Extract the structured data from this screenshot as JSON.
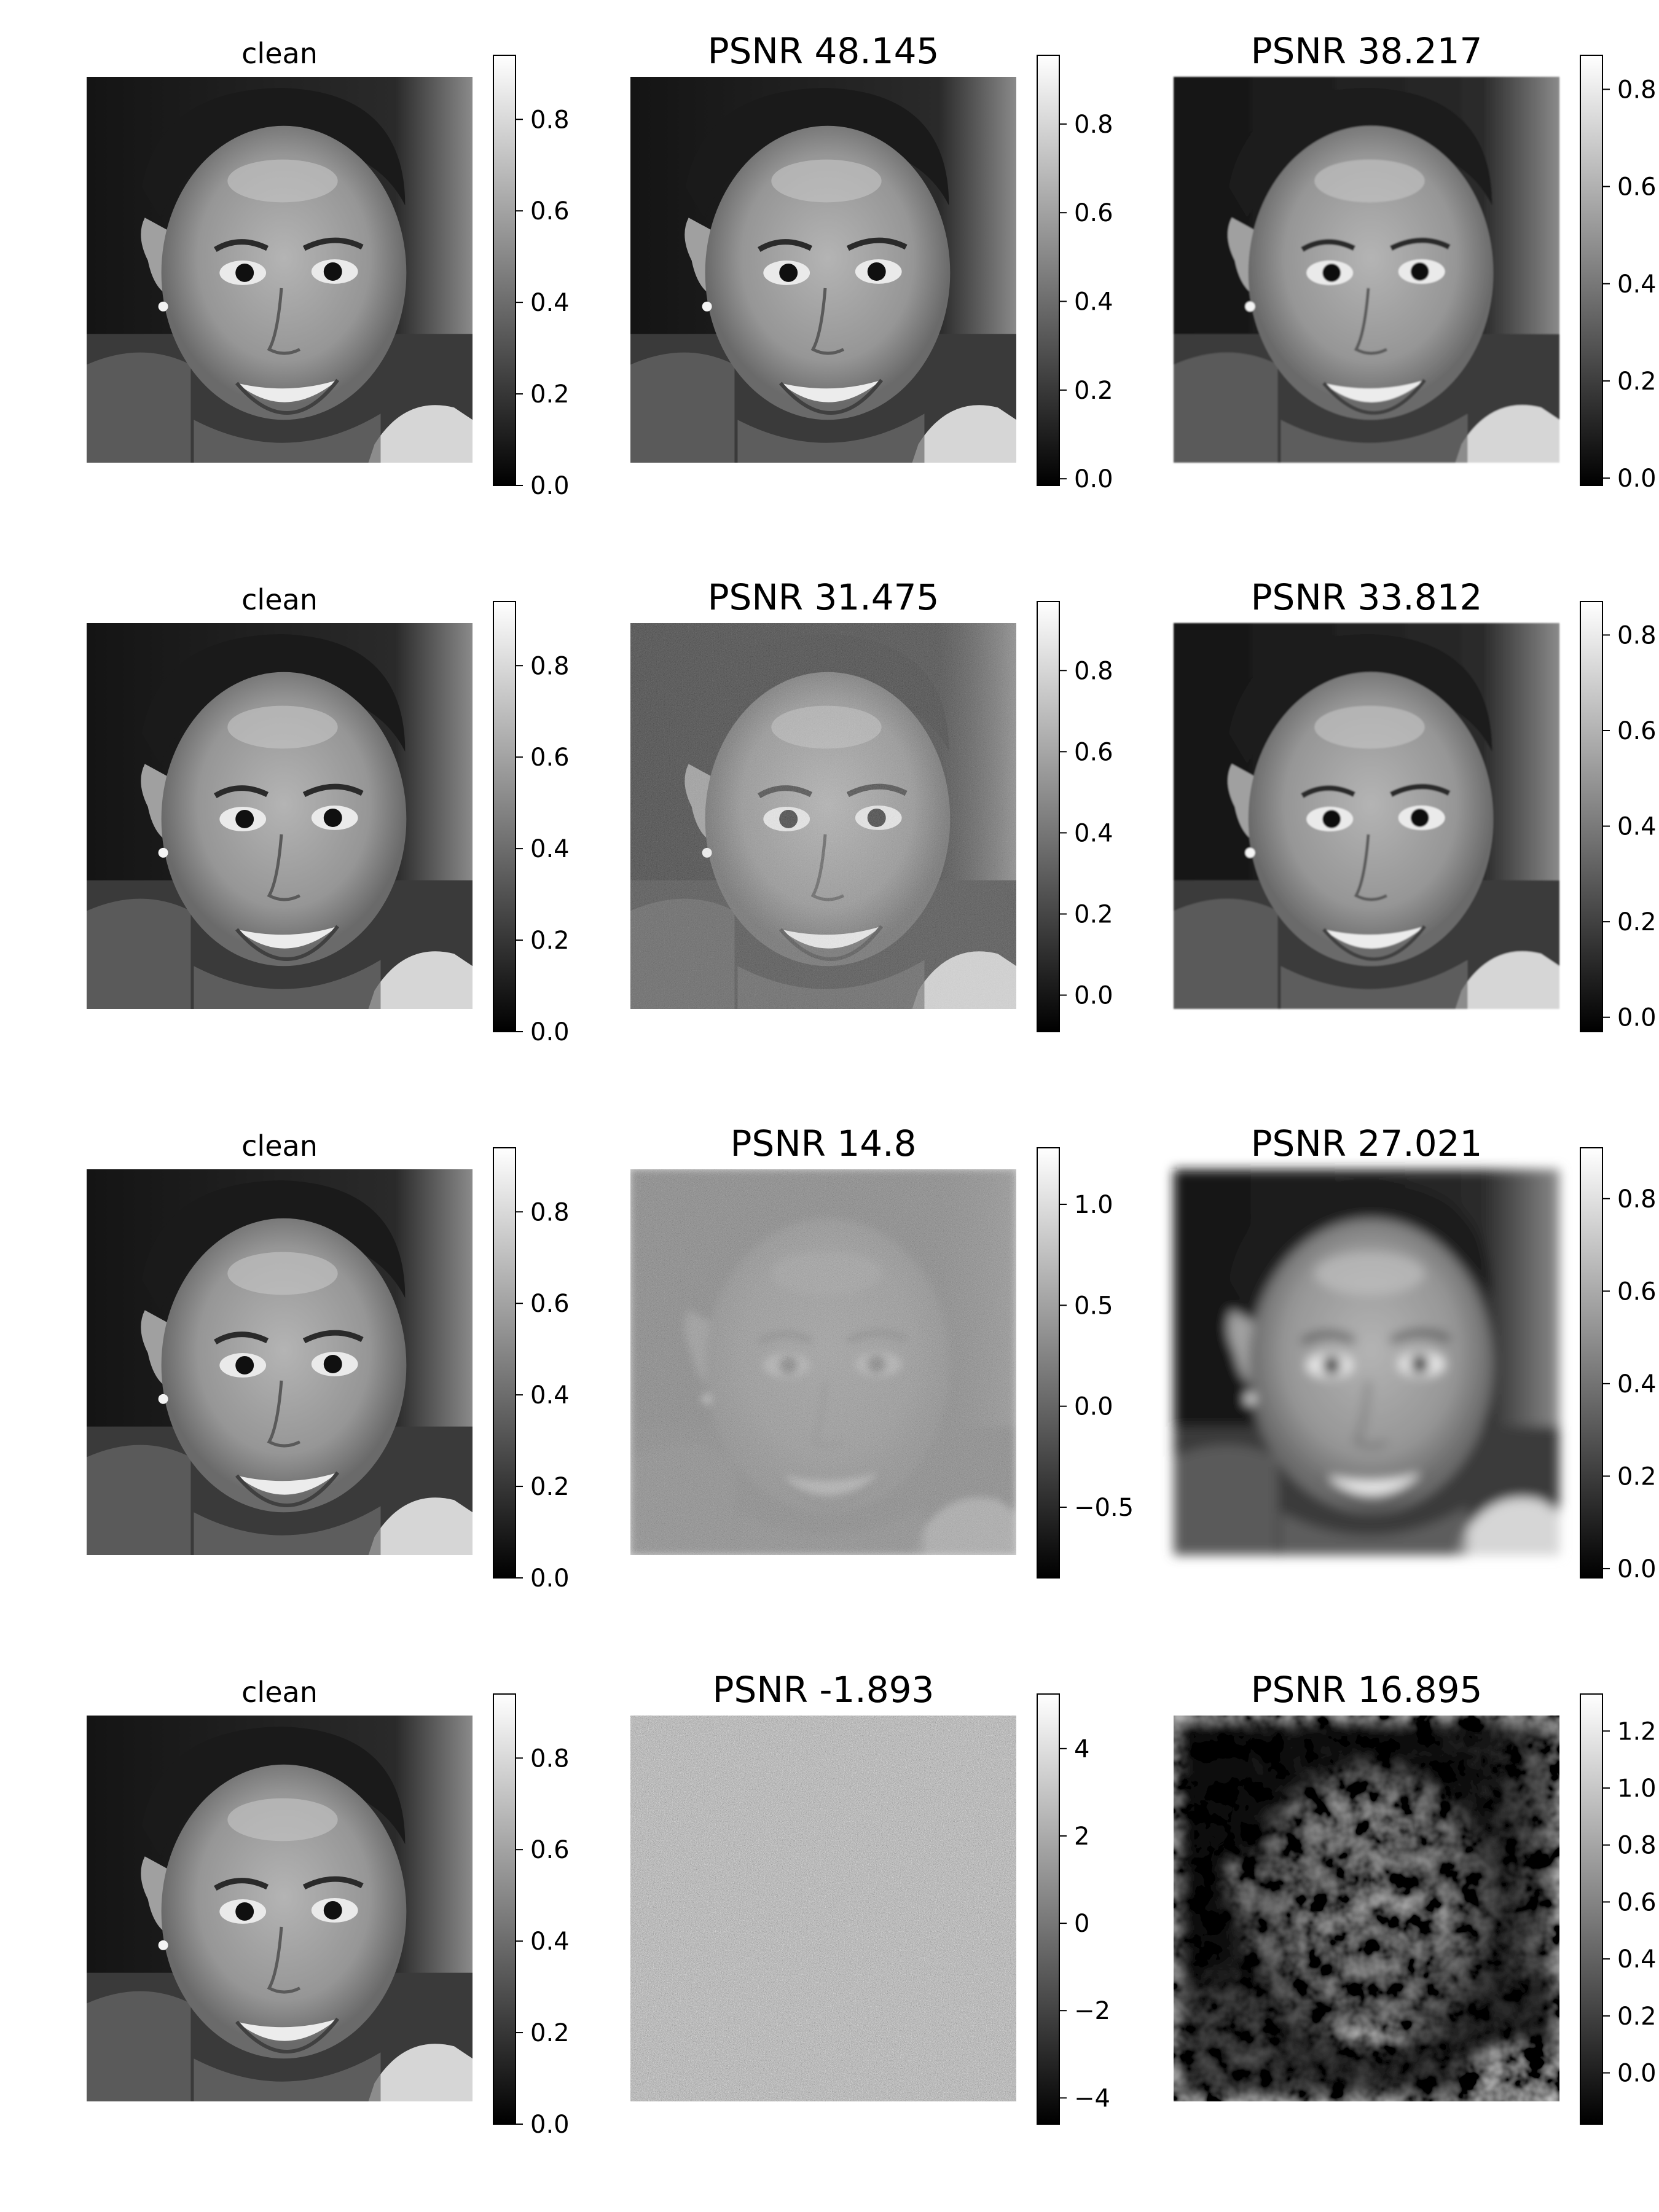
{
  "figure": {
    "rows": [
      {
        "panels": [
          {
            "title": "clean",
            "kind": "clean",
            "cbar": {
              "vmin": 0.0,
              "vmax": 0.94,
              "ticks": [
                0.0,
                0.2,
                0.4,
                0.6,
                0.8
              ],
              "tick_labels": [
                "0.0",
                "0.2",
                "0.4",
                "0.6",
                "0.8"
              ]
            }
          },
          {
            "title": "PSNR 48.145",
            "kind": "clean",
            "cbar": {
              "vmin": -0.015,
              "vmax": 0.955,
              "ticks": [
                0.0,
                0.2,
                0.4,
                0.6,
                0.8
              ],
              "tick_labels": [
                "0.0",
                "0.2",
                "0.4",
                "0.6",
                "0.8"
              ]
            }
          },
          {
            "title": "PSNR 38.217",
            "kind": "smooth",
            "cbar": {
              "vmin": -0.015,
              "vmax": 0.87,
              "ticks": [
                0.0,
                0.2,
                0.4,
                0.6,
                0.8
              ],
              "tick_labels": [
                "0.0",
                "0.2",
                "0.4",
                "0.6",
                "0.8"
              ]
            }
          }
        ]
      },
      {
        "panels": [
          {
            "title": "clean",
            "kind": "clean",
            "cbar": {
              "vmin": 0.0,
              "vmax": 0.94,
              "ticks": [
                0.0,
                0.2,
                0.4,
                0.6,
                0.8
              ],
              "tick_labels": [
                "0.0",
                "0.2",
                "0.4",
                "0.6",
                "0.8"
              ]
            }
          },
          {
            "title": "PSNR 31.475",
            "kind": "noisy-light",
            "cbar": {
              "vmin": -0.09,
              "vmax": 0.97,
              "ticks": [
                0.0,
                0.2,
                0.4,
                0.6,
                0.8
              ],
              "tick_labels": [
                "0.0",
                "0.2",
                "0.4",
                "0.6",
                "0.8"
              ]
            }
          },
          {
            "title": "PSNR 33.812",
            "kind": "smooth",
            "cbar": {
              "vmin": -0.03,
              "vmax": 0.87,
              "ticks": [
                0.0,
                0.2,
                0.4,
                0.6,
                0.8
              ],
              "tick_labels": [
                "0.0",
                "0.2",
                "0.4",
                "0.6",
                "0.8"
              ]
            }
          }
        ]
      },
      {
        "panels": [
          {
            "title": "clean",
            "kind": "clean",
            "cbar": {
              "vmin": 0.0,
              "vmax": 0.94,
              "ticks": [
                0.0,
                0.2,
                0.4,
                0.6,
                0.8
              ],
              "tick_labels": [
                "0.0",
                "0.2",
                "0.4",
                "0.6",
                "0.8"
              ]
            }
          },
          {
            "title": "PSNR 14.8",
            "kind": "noisy-heavy",
            "cbar": {
              "vmin": -0.85,
              "vmax": 1.28,
              "ticks": [
                -0.5,
                0.0,
                0.5,
                1.0
              ],
              "tick_labels": [
                "−0.5",
                "0.0",
                "0.5",
                "1.0"
              ]
            }
          },
          {
            "title": "PSNR 27.021",
            "kind": "blurry",
            "cbar": {
              "vmin": -0.02,
              "vmax": 0.91,
              "ticks": [
                0.0,
                0.2,
                0.4,
                0.6,
                0.8
              ],
              "tick_labels": [
                "0.0",
                "0.2",
                "0.4",
                "0.6",
                "0.8"
              ]
            }
          }
        ]
      },
      {
        "panels": [
          {
            "title": "clean",
            "kind": "clean",
            "cbar": {
              "vmin": 0.0,
              "vmax": 0.94,
              "ticks": [
                0.0,
                0.2,
                0.4,
                0.6,
                0.8
              ],
              "tick_labels": [
                "0.0",
                "0.2",
                "0.4",
                "0.6",
                "0.8"
              ]
            }
          },
          {
            "title": "PSNR -1.893",
            "kind": "pure-noise",
            "cbar": {
              "vmin": -4.6,
              "vmax": 5.25,
              "ticks": [
                -4,
                -2,
                0,
                2,
                4
              ],
              "tick_labels": [
                "−4",
                "−2",
                "0",
                "2",
                "4"
              ]
            }
          },
          {
            "title": "PSNR 16.895",
            "kind": "blotchy",
            "cbar": {
              "vmin": -0.18,
              "vmax": 1.33,
              "ticks": [
                0.0,
                0.2,
                0.4,
                0.6,
                0.8,
                1.0,
                1.2
              ],
              "tick_labels": [
                "0.0",
                "0.2",
                "0.4",
                "0.6",
                "0.8",
                "1.0",
                "1.2"
              ]
            }
          }
        ]
      }
    ]
  },
  "chart_data": {
    "type": "heatmap",
    "colormap": "gray",
    "panel_titles": [
      [
        "clean",
        "PSNR 48.145",
        "PSNR 38.217"
      ],
      [
        "clean",
        "PSNR 31.475",
        "PSNR 33.812"
      ],
      [
        "clean",
        "PSNR 14.8",
        "PSNR 27.021"
      ],
      [
        "clean",
        "PSNR -1.893",
        "PSNR 16.895"
      ]
    ],
    "psnr_values": [
      [
        48.145,
        38.217
      ],
      [
        31.475,
        33.812
      ],
      [
        14.8,
        27.021
      ],
      [
        -1.893,
        16.895
      ]
    ]
  }
}
